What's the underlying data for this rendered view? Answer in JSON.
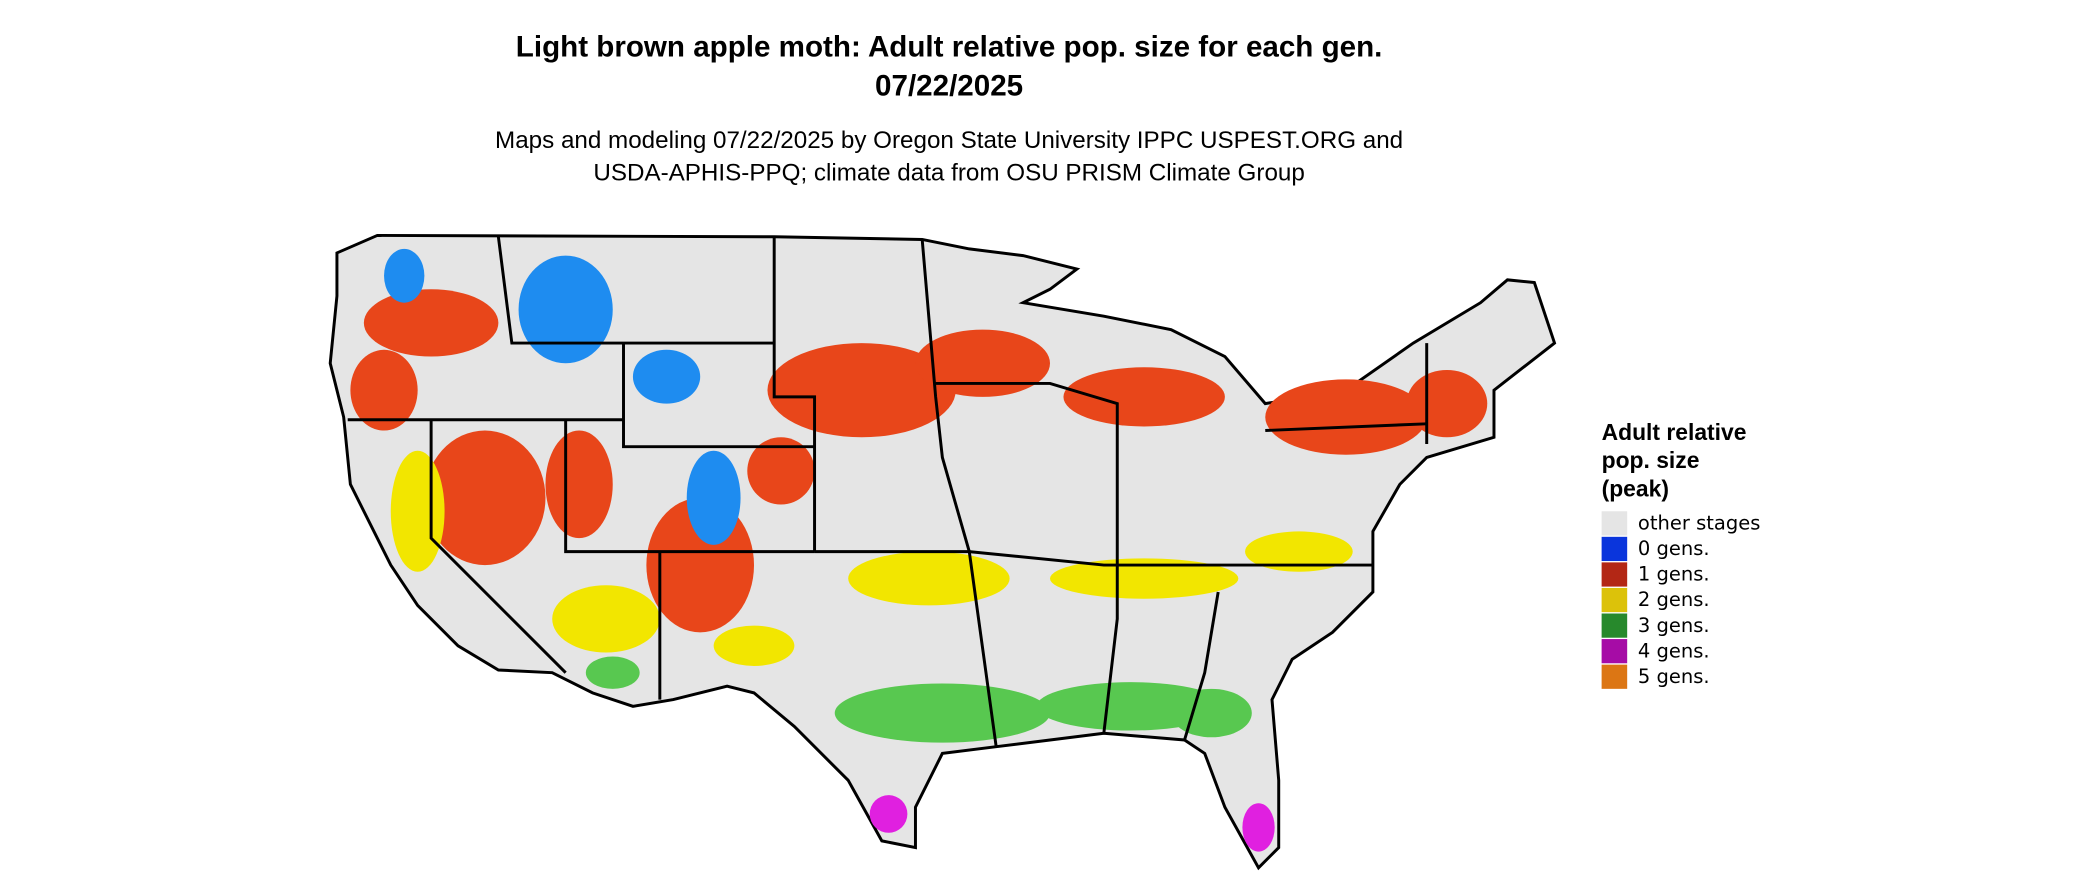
{
  "title": [
    "Light brown apple moth: Adult relative pop. size for each gen.",
    "07/22/2025"
  ],
  "subtitle": [
    "Maps and modeling 07/22/2025 by Oregon State University IPPC USPEST.ORG and",
    "USDA-APHIS-PPQ; climate data from OSU PRISM Climate Group"
  ],
  "legend": {
    "title": [
      "Adult relative",
      "pop. size",
      "(peak)"
    ],
    "items": [
      {
        "label": "other stages",
        "color": "#e5e5e5"
      },
      {
        "label": "0 gens.",
        "color": "#0a35dc"
      },
      {
        "label": "1 gens.",
        "color": "#b32715"
      },
      {
        "label": "2 gens.",
        "color": "#dcc20a"
      },
      {
        "label": "3 gens.",
        "color": "#27892c"
      },
      {
        "label": "4 gens.",
        "color": "#a60ca6"
      },
      {
        "label": "5 gens.",
        "color": "#dc7614"
      }
    ]
  }
}
